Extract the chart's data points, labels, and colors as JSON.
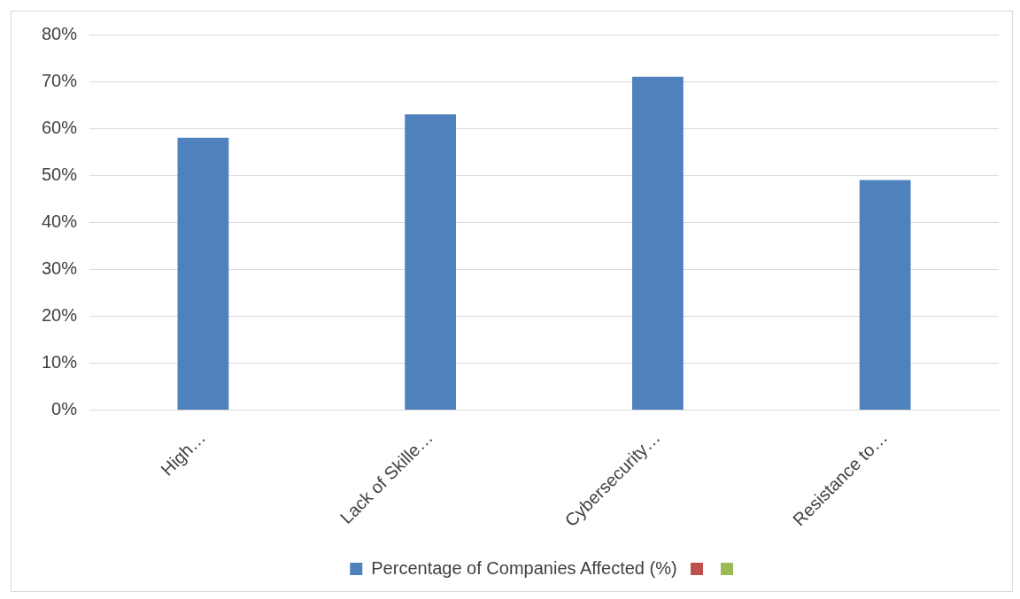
{
  "chart_data": {
    "type": "bar",
    "categories": [
      "High…",
      "Lack of Skille…",
      "Cybersecurity…",
      "Resistance to…"
    ],
    "series": [
      {
        "name": "Percentage of Companies Affected (%)",
        "color": "#4f81bd",
        "values": [
          58,
          63,
          71,
          49
        ]
      }
    ],
    "ylim": [
      0,
      80
    ],
    "yticks": [
      {
        "value": 0,
        "label": "0%"
      },
      {
        "value": 10,
        "label": "10%"
      },
      {
        "value": 20,
        "label": "20%"
      },
      {
        "value": 30,
        "label": "30%"
      },
      {
        "value": 40,
        "label": "40%"
      },
      {
        "value": 50,
        "label": "50%"
      },
      {
        "value": 60,
        "label": "60%"
      },
      {
        "value": 70,
        "label": "70%"
      },
      {
        "value": 80,
        "label": "80%"
      }
    ],
    "grid": "y",
    "legend": "bottom"
  }
}
